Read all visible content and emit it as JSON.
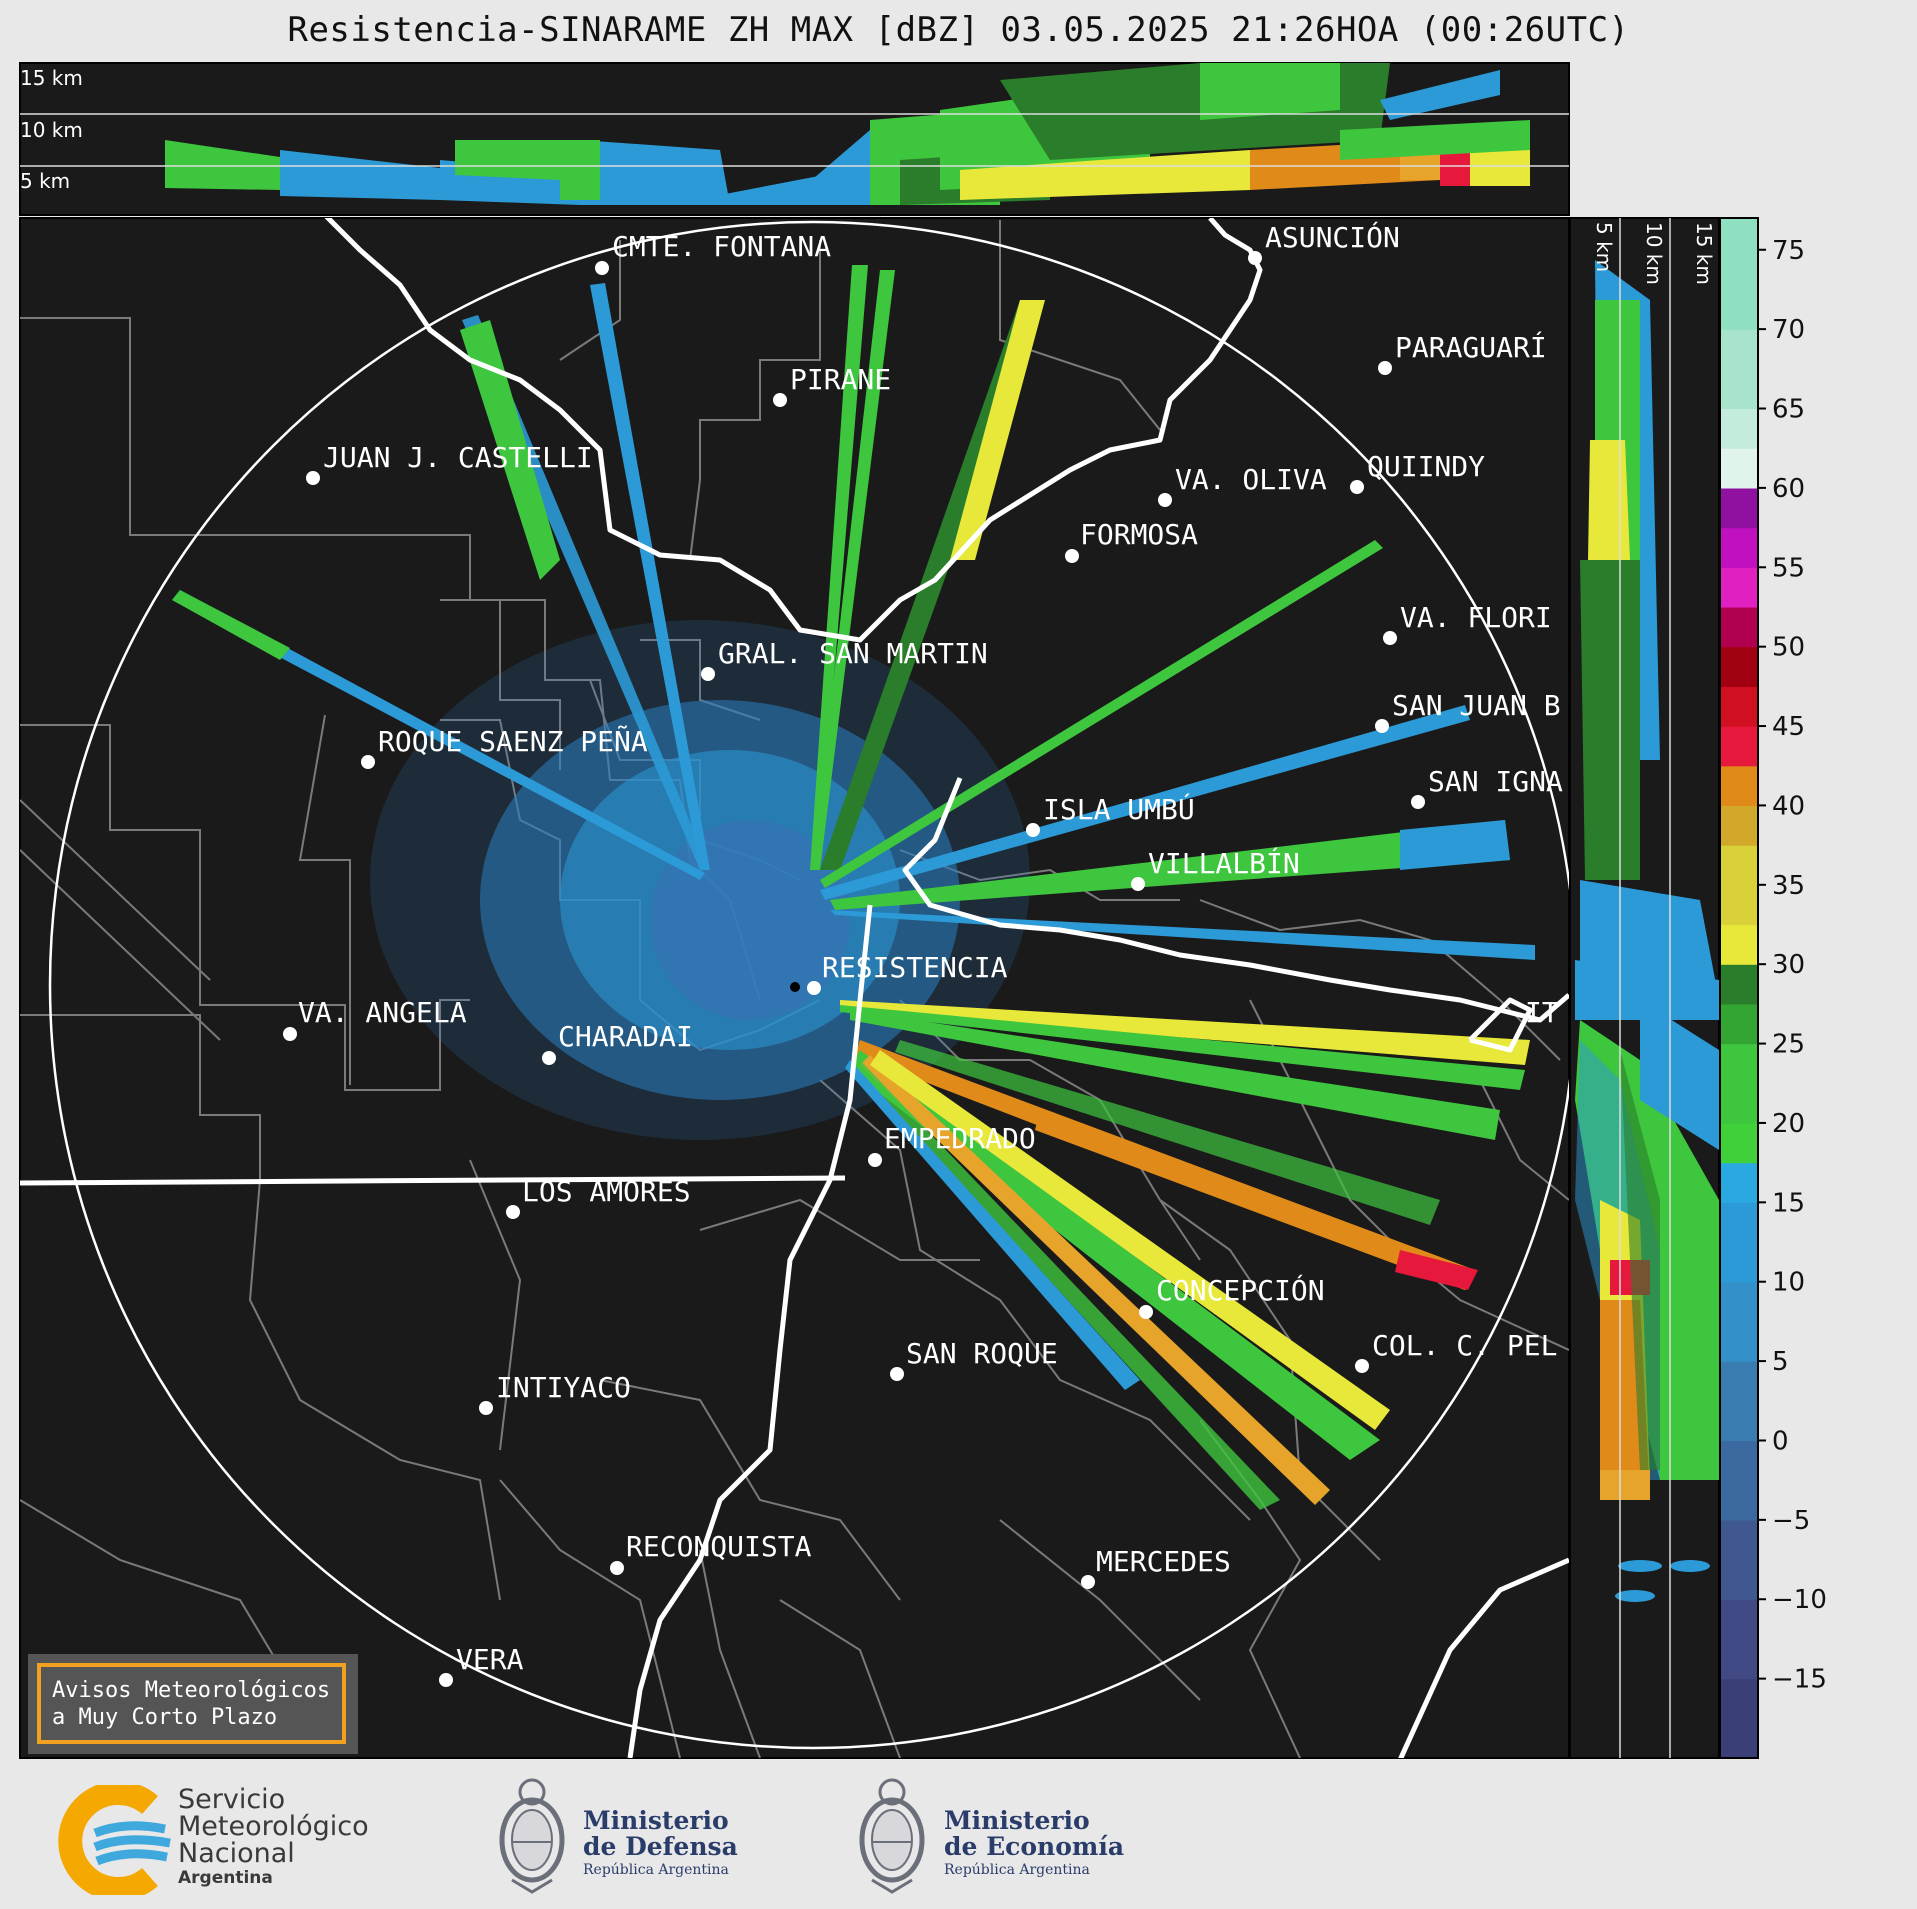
{
  "title": "Resistencia-SINARAME ZH MAX [dBZ] 03.05.2025 21:26HOA (00:26UTC)",
  "top_panel": {
    "height_labels": [
      "15 km",
      "10 km",
      "5 km"
    ]
  },
  "side_panel": {
    "height_labels": [
      "5 km",
      "10 km",
      "15 km"
    ]
  },
  "colorbar": {
    "ticks": [
      "75",
      "70",
      "65",
      "60",
      "55",
      "50",
      "45",
      "40",
      "35",
      "30",
      "25",
      "20",
      "15",
      "10",
      "5",
      "0",
      "−5",
      "−10",
      "−15"
    ],
    "range": [
      -20,
      77
    ],
    "colors": {
      "low": "#3b3f78",
      "blue": "#2c9ad6",
      "green": "#3ec63e",
      "darkgreen": "#2a7d2a",
      "yellow": "#e8e83a",
      "orange": "#e08a1a",
      "red": "#e6183c",
      "magenta": "#d21ad2",
      "mint": "#8fe0c0"
    }
  },
  "cities": [
    {
      "name": "CMTE. FONTANA"
    },
    {
      "name": "ASUNCIÓN"
    },
    {
      "name": "PARAGUARÍ"
    },
    {
      "name": "PIRANE"
    },
    {
      "name": "JUAN J. CASTELLI"
    },
    {
      "name": "VA. OLIVA"
    },
    {
      "name": "QUIINDY"
    },
    {
      "name": "FORMOSA"
    },
    {
      "name": "VA. FLORI"
    },
    {
      "name": "GRAL. SAN MARTIN"
    },
    {
      "name": "SAN JUAN B"
    },
    {
      "name": "SAN IGNA"
    },
    {
      "name": "ROQUE SAENZ PEÑA"
    },
    {
      "name": "ISLA UMBÚ"
    },
    {
      "name": "VILLALBÍN"
    },
    {
      "name": "RESISTENCIA"
    },
    {
      "name": "VA. ANGELA"
    },
    {
      "name": "CHARADAI"
    },
    {
      "name": "IT"
    },
    {
      "name": "EMPEDRADO"
    },
    {
      "name": "LOS AMORES"
    },
    {
      "name": "CONCEPCIÓN"
    },
    {
      "name": "COL. C. PEL"
    },
    {
      "name": "SAN ROQUE"
    },
    {
      "name": "INTIYACO"
    },
    {
      "name": "RECONQUISTA"
    },
    {
      "name": "MERCEDES"
    },
    {
      "name": "VERA"
    }
  ],
  "warning_box": {
    "line1": "Avisos Meteorológicos",
    "line2": "a Muy Corto Plazo"
  },
  "footer": {
    "smn": {
      "line1": "Servicio",
      "line2": "Meteorológico",
      "line3": "Nacional",
      "line4": "Argentina"
    },
    "defensa": {
      "line1": "Ministerio",
      "line2": "de Defensa",
      "line3": "República Argentina"
    },
    "economia": {
      "line1": "Ministerio",
      "line2": "de Economía",
      "line3": "República Argentina"
    }
  }
}
